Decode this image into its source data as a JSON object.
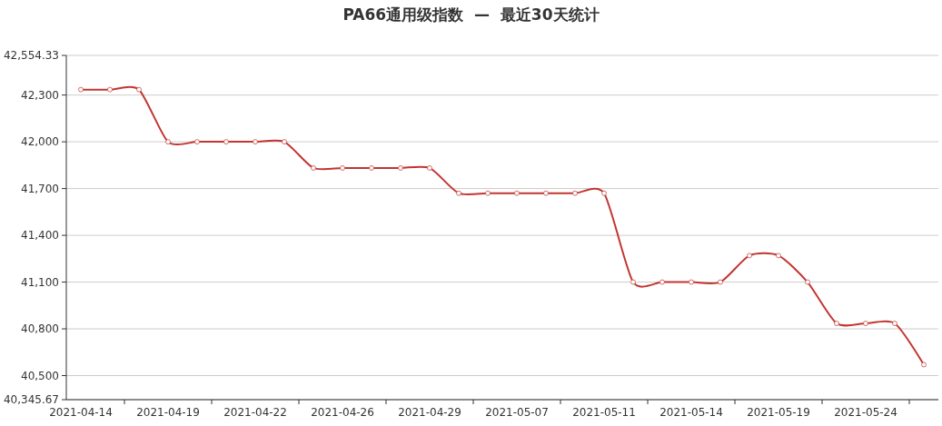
{
  "chart_data": {
    "type": "line",
    "title": "PA66通用级指数  —  最近30天统计",
    "categories": [
      "2021-04-14",
      null,
      null,
      "2021-04-19",
      null,
      null,
      "2021-04-22",
      null,
      null,
      "2021-04-26",
      null,
      null,
      "2021-04-29",
      null,
      null,
      "2021-05-07",
      null,
      null,
      "2021-05-11",
      null,
      null,
      "2021-05-14",
      null,
      null,
      "2021-05-19",
      null,
      null,
      "2021-05-24",
      null,
      null
    ],
    "series": [
      {
        "color": "#c23531",
        "values": [
          42335,
          42335,
          42335,
          42000,
          42000,
          42000,
          42000,
          42000,
          41832,
          41832,
          41832,
          41832,
          41832,
          41670,
          41670,
          41670,
          41670,
          41670,
          41670,
          41100,
          41100,
          41100,
          41100,
          41270,
          41270,
          41100,
          40835,
          40835,
          40835,
          40570
        ]
      }
    ],
    "ylim": [
      40345.67,
      42554.33
    ],
    "yticks": [
      {
        "value": 40345.67,
        "label": "40,345.67"
      },
      {
        "value": 40500,
        "label": "40,500"
      },
      {
        "value": 40800,
        "label": "40,800"
      },
      {
        "value": 41100,
        "label": "41,100"
      },
      {
        "value": 41400,
        "label": "41,400"
      },
      {
        "value": 41700,
        "label": "41,700"
      },
      {
        "value": 42000,
        "label": "42,000"
      },
      {
        "value": 42300,
        "label": "42,300"
      },
      {
        "value": 42554.33,
        "label": "42,554.33"
      }
    ],
    "grid": "y",
    "marker": "circle",
    "line_style": "solid"
  }
}
